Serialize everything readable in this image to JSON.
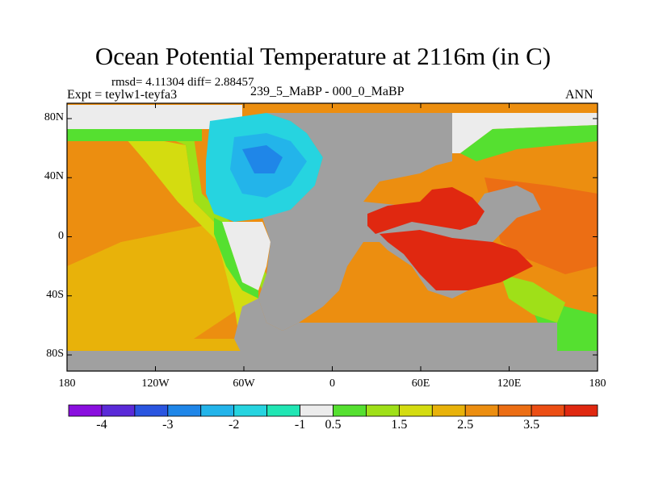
{
  "header": {
    "title": "Ocean Potential Temperature at 2116m (in C)",
    "stats": "rmsd= 4.11304 diff= 2.88457",
    "experiment": "Expt = teylw1-teyfa3",
    "experiment_name": "239_5_MaBP - 000_0_MaBP",
    "season": "ANN"
  },
  "map": {
    "projection": "cylindrical-equidistant",
    "lon_range": [
      -180,
      180
    ],
    "lat_range": [
      -90,
      90
    ],
    "land_color": "#a0a0a0",
    "y_ticks": [
      {
        "lat": 80,
        "label": "80N"
      },
      {
        "lat": 40,
        "label": "40N"
      },
      {
        "lat": 0,
        "label": "0"
      },
      {
        "lat": -40,
        "label": "40S"
      },
      {
        "lat": -80,
        "label": "80S"
      }
    ],
    "x_ticks": [
      {
        "lon": -180,
        "label": "180"
      },
      {
        "lon": -120,
        "label": "120W"
      },
      {
        "lon": -60,
        "label": "60W"
      },
      {
        "lon": 0,
        "label": "0"
      },
      {
        "lon": 60,
        "label": "60E"
      },
      {
        "lon": 120,
        "label": "120E"
      },
      {
        "lon": 180,
        "label": "180"
      }
    ]
  },
  "colorbar": {
    "colors": [
      "#8a0fdf",
      "#5a2ad8",
      "#2a55e0",
      "#1f86e8",
      "#23b4ea",
      "#26d4e0",
      "#20e6b4",
      "#ececec",
      "#55e030",
      "#9fe018",
      "#d4dc10",
      "#e8b20a",
      "#ec8e10",
      "#ec6e14",
      "#ec4e14",
      "#e02810"
    ],
    "labels": [
      {
        "boundary": 1,
        "text": "-4"
      },
      {
        "boundary": 3,
        "text": "-3"
      },
      {
        "boundary": 5,
        "text": "-2"
      },
      {
        "boundary": 7,
        "text": "-1"
      },
      {
        "boundary": 8,
        "text": "0.5"
      },
      {
        "boundary": 10,
        "text": "1.5"
      },
      {
        "boundary": 12,
        "text": "2.5"
      },
      {
        "boundary": 14,
        "text": "3.5"
      }
    ]
  }
}
